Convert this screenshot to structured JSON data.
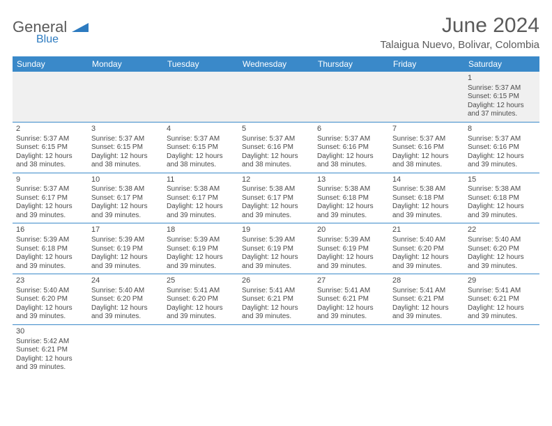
{
  "brand": {
    "text1": "General",
    "text2": "Blue"
  },
  "title": "June 2024",
  "location": "Talaigua Nuevo, Bolivar, Colombia",
  "colors": {
    "header_bg": "#3a89c9",
    "header_text": "#ffffff",
    "cell_border": "#3a89c9",
    "first_row_bg": "#f0f0f0",
    "text": "#4a4a4a",
    "title_text": "#5a5a5a",
    "logo_blue": "#2d7bc0"
  },
  "fonts": {
    "title_size": 30,
    "location_size": 15,
    "th_size": 12,
    "cell_size": 10
  },
  "weekdays": [
    "Sunday",
    "Monday",
    "Tuesday",
    "Wednesday",
    "Thursday",
    "Friday",
    "Saturday"
  ],
  "weeks": [
    [
      null,
      null,
      null,
      null,
      null,
      null,
      {
        "d": "1",
        "sr": "Sunrise: 5:37 AM",
        "ss": "Sunset: 6:15 PM",
        "dl1": "Daylight: 12 hours",
        "dl2": "and 37 minutes."
      }
    ],
    [
      {
        "d": "2",
        "sr": "Sunrise: 5:37 AM",
        "ss": "Sunset: 6:15 PM",
        "dl1": "Daylight: 12 hours",
        "dl2": "and 38 minutes."
      },
      {
        "d": "3",
        "sr": "Sunrise: 5:37 AM",
        "ss": "Sunset: 6:15 PM",
        "dl1": "Daylight: 12 hours",
        "dl2": "and 38 minutes."
      },
      {
        "d": "4",
        "sr": "Sunrise: 5:37 AM",
        "ss": "Sunset: 6:15 PM",
        "dl1": "Daylight: 12 hours",
        "dl2": "and 38 minutes."
      },
      {
        "d": "5",
        "sr": "Sunrise: 5:37 AM",
        "ss": "Sunset: 6:16 PM",
        "dl1": "Daylight: 12 hours",
        "dl2": "and 38 minutes."
      },
      {
        "d": "6",
        "sr": "Sunrise: 5:37 AM",
        "ss": "Sunset: 6:16 PM",
        "dl1": "Daylight: 12 hours",
        "dl2": "and 38 minutes."
      },
      {
        "d": "7",
        "sr": "Sunrise: 5:37 AM",
        "ss": "Sunset: 6:16 PM",
        "dl1": "Daylight: 12 hours",
        "dl2": "and 38 minutes."
      },
      {
        "d": "8",
        "sr": "Sunrise: 5:37 AM",
        "ss": "Sunset: 6:16 PM",
        "dl1": "Daylight: 12 hours",
        "dl2": "and 39 minutes."
      }
    ],
    [
      {
        "d": "9",
        "sr": "Sunrise: 5:37 AM",
        "ss": "Sunset: 6:17 PM",
        "dl1": "Daylight: 12 hours",
        "dl2": "and 39 minutes."
      },
      {
        "d": "10",
        "sr": "Sunrise: 5:38 AM",
        "ss": "Sunset: 6:17 PM",
        "dl1": "Daylight: 12 hours",
        "dl2": "and 39 minutes."
      },
      {
        "d": "11",
        "sr": "Sunrise: 5:38 AM",
        "ss": "Sunset: 6:17 PM",
        "dl1": "Daylight: 12 hours",
        "dl2": "and 39 minutes."
      },
      {
        "d": "12",
        "sr": "Sunrise: 5:38 AM",
        "ss": "Sunset: 6:17 PM",
        "dl1": "Daylight: 12 hours",
        "dl2": "and 39 minutes."
      },
      {
        "d": "13",
        "sr": "Sunrise: 5:38 AM",
        "ss": "Sunset: 6:18 PM",
        "dl1": "Daylight: 12 hours",
        "dl2": "and 39 minutes."
      },
      {
        "d": "14",
        "sr": "Sunrise: 5:38 AM",
        "ss": "Sunset: 6:18 PM",
        "dl1": "Daylight: 12 hours",
        "dl2": "and 39 minutes."
      },
      {
        "d": "15",
        "sr": "Sunrise: 5:38 AM",
        "ss": "Sunset: 6:18 PM",
        "dl1": "Daylight: 12 hours",
        "dl2": "and 39 minutes."
      }
    ],
    [
      {
        "d": "16",
        "sr": "Sunrise: 5:39 AM",
        "ss": "Sunset: 6:18 PM",
        "dl1": "Daylight: 12 hours",
        "dl2": "and 39 minutes."
      },
      {
        "d": "17",
        "sr": "Sunrise: 5:39 AM",
        "ss": "Sunset: 6:19 PM",
        "dl1": "Daylight: 12 hours",
        "dl2": "and 39 minutes."
      },
      {
        "d": "18",
        "sr": "Sunrise: 5:39 AM",
        "ss": "Sunset: 6:19 PM",
        "dl1": "Daylight: 12 hours",
        "dl2": "and 39 minutes."
      },
      {
        "d": "19",
        "sr": "Sunrise: 5:39 AM",
        "ss": "Sunset: 6:19 PM",
        "dl1": "Daylight: 12 hours",
        "dl2": "and 39 minutes."
      },
      {
        "d": "20",
        "sr": "Sunrise: 5:39 AM",
        "ss": "Sunset: 6:19 PM",
        "dl1": "Daylight: 12 hours",
        "dl2": "and 39 minutes."
      },
      {
        "d": "21",
        "sr": "Sunrise: 5:40 AM",
        "ss": "Sunset: 6:20 PM",
        "dl1": "Daylight: 12 hours",
        "dl2": "and 39 minutes."
      },
      {
        "d": "22",
        "sr": "Sunrise: 5:40 AM",
        "ss": "Sunset: 6:20 PM",
        "dl1": "Daylight: 12 hours",
        "dl2": "and 39 minutes."
      }
    ],
    [
      {
        "d": "23",
        "sr": "Sunrise: 5:40 AM",
        "ss": "Sunset: 6:20 PM",
        "dl1": "Daylight: 12 hours",
        "dl2": "and 39 minutes."
      },
      {
        "d": "24",
        "sr": "Sunrise: 5:40 AM",
        "ss": "Sunset: 6:20 PM",
        "dl1": "Daylight: 12 hours",
        "dl2": "and 39 minutes."
      },
      {
        "d": "25",
        "sr": "Sunrise: 5:41 AM",
        "ss": "Sunset: 6:20 PM",
        "dl1": "Daylight: 12 hours",
        "dl2": "and 39 minutes."
      },
      {
        "d": "26",
        "sr": "Sunrise: 5:41 AM",
        "ss": "Sunset: 6:21 PM",
        "dl1": "Daylight: 12 hours",
        "dl2": "and 39 minutes."
      },
      {
        "d": "27",
        "sr": "Sunrise: 5:41 AM",
        "ss": "Sunset: 6:21 PM",
        "dl1": "Daylight: 12 hours",
        "dl2": "and 39 minutes."
      },
      {
        "d": "28",
        "sr": "Sunrise: 5:41 AM",
        "ss": "Sunset: 6:21 PM",
        "dl1": "Daylight: 12 hours",
        "dl2": "and 39 minutes."
      },
      {
        "d": "29",
        "sr": "Sunrise: 5:41 AM",
        "ss": "Sunset: 6:21 PM",
        "dl1": "Daylight: 12 hours",
        "dl2": "and 39 minutes."
      }
    ],
    [
      {
        "d": "30",
        "sr": "Sunrise: 5:42 AM",
        "ss": "Sunset: 6:21 PM",
        "dl1": "Daylight: 12 hours",
        "dl2": "and 39 minutes."
      },
      null,
      null,
      null,
      null,
      null,
      null
    ]
  ]
}
